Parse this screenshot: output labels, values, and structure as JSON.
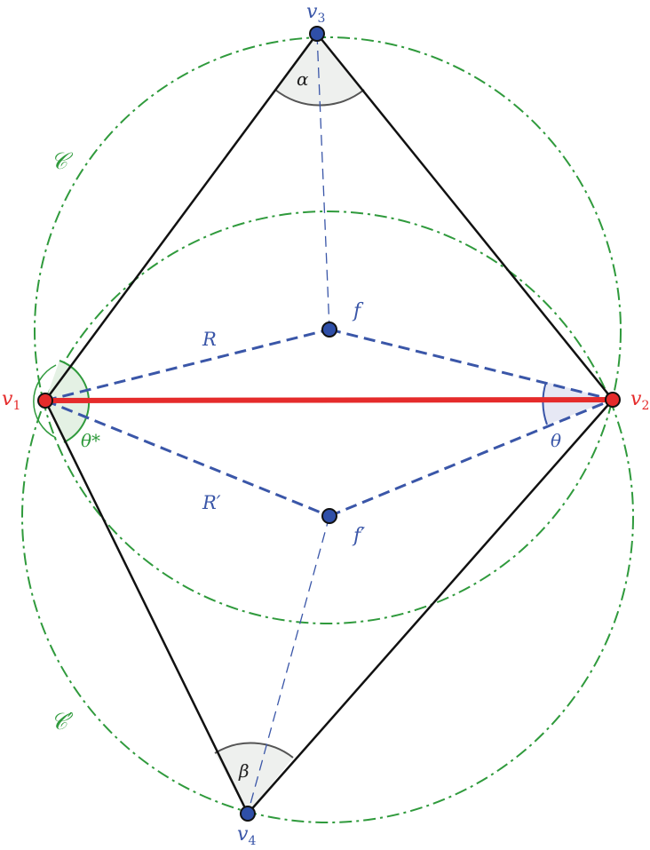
{
  "labels": {
    "v1": "v",
    "v1_sub": "1",
    "v2": "v",
    "v2_sub": "2",
    "v3": "v",
    "v3_sub": "3",
    "v4": "v",
    "v4_sub": "4",
    "f": "f",
    "f_prime": "f′",
    "R": "R",
    "R_prime": "R′",
    "alpha": "α",
    "beta": "β",
    "theta": "θ",
    "theta_star": "θ*",
    "circle_C": "𝒞",
    "circle_C_prime": "𝒞′"
  },
  "colors": {
    "edge": "#111111",
    "base_edge": "#e52b2b",
    "dashed": "#3a56a8",
    "circle": "#2f9a3c",
    "vertex_blue": "#2f4fa8",
    "vertex_red": "#e52b2b",
    "angle_fill_gray": "#eef0ee",
    "angle_fill_green": "#e4f1e4",
    "angle_fill_blue": "#e6e8f4"
  }
}
